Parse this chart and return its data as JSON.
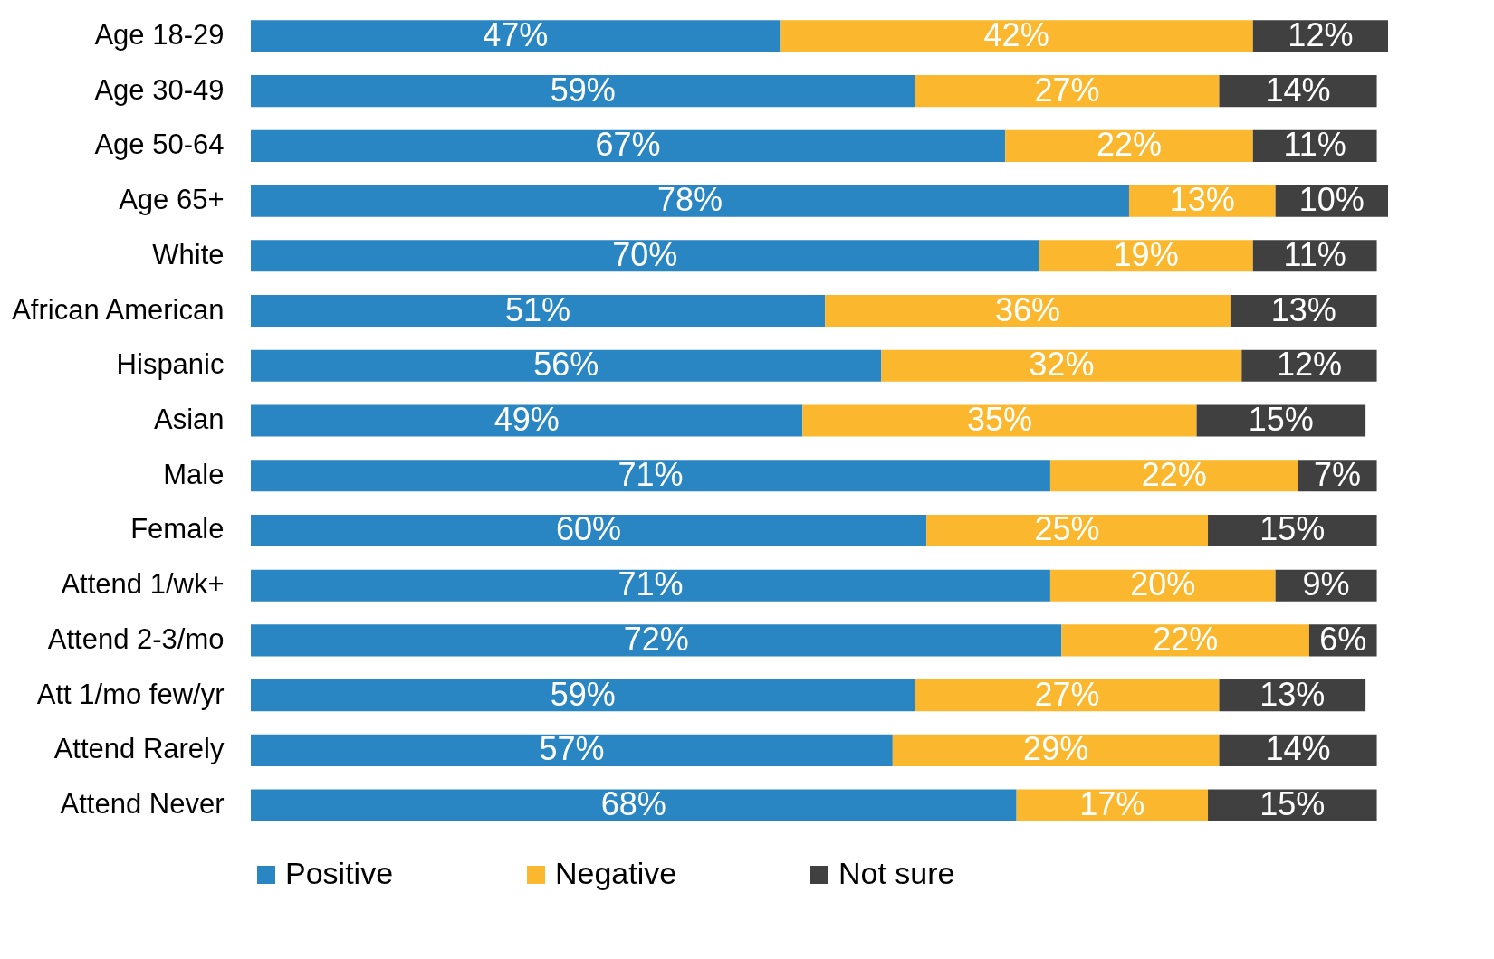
{
  "chart_data": {
    "type": "bar",
    "orientation": "horizontal",
    "stacked": true,
    "categories": [
      "Age 18-29",
      "Age 30-49",
      "Age 50-64",
      "Age 65+",
      "White",
      "African American",
      "Hispanic",
      "Asian",
      "Male",
      "Female",
      "Attend 1/wk+",
      "Attend 2-3/mo",
      "Att 1/mo few/yr",
      "Attend Rarely",
      "Attend Never"
    ],
    "series": [
      {
        "name": "Positive",
        "color": "#2a86c2",
        "values": [
          47,
          59,
          67,
          78,
          70,
          51,
          56,
          49,
          71,
          60,
          71,
          72,
          59,
          57,
          68
        ],
        "value_labels": [
          "47%",
          "59%",
          "67%",
          "78%",
          "70%",
          "51%",
          "56%",
          "49%",
          "71%",
          "60%",
          "71%",
          "72%",
          "59%",
          "57%",
          "68%"
        ]
      },
      {
        "name": "Negative",
        "color": "#fbb72d",
        "values": [
          42,
          27,
          22,
          13,
          19,
          36,
          32,
          35,
          22,
          25,
          20,
          22,
          27,
          29,
          17
        ],
        "value_labels": [
          "42%",
          "27%",
          "22%",
          "13%",
          "19%",
          "36%",
          "32%",
          "35%",
          "22%",
          "25%",
          "20%",
          "22%",
          "27%",
          "29%",
          "17%"
        ]
      },
      {
        "name": "Not sure",
        "color": "#404040",
        "values": [
          12,
          14,
          11,
          10,
          11,
          13,
          12,
          15,
          7,
          15,
          9,
          6,
          13,
          14,
          15
        ],
        "value_labels": [
          "12%",
          "14%",
          "11%",
          "10%",
          "11%",
          "13%",
          "12%",
          "15%",
          "7%",
          "15%",
          "9%",
          "6%",
          "13%",
          "14%",
          "15%"
        ]
      }
    ],
    "tick_labels": "y",
    "legend": "bottom"
  }
}
